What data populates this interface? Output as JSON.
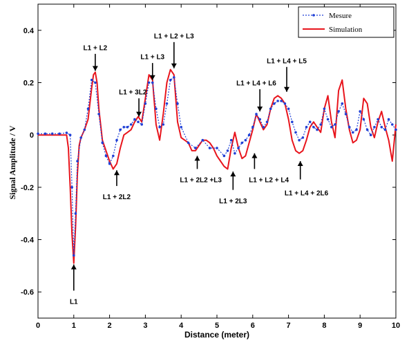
{
  "chart_data": {
    "type": "line",
    "xlabel": "Distance (meter)",
    "ylabel": "Signal Amplitude / V",
    "xlim": [
      0,
      10
    ],
    "ylim": [
      -0.7,
      0.5
    ],
    "xticks": [
      "0",
      "1",
      "2",
      "3",
      "4",
      "5",
      "6",
      "7",
      "8",
      "9",
      "10"
    ],
    "yticks": [
      "0.4",
      "0.2",
      "0",
      "-0.2",
      "-0.4",
      "-0.6"
    ],
    "grid": false,
    "legend_position": "top-right",
    "colors": {
      "mesure": "#1f3fd6",
      "simulation": "#e8141c"
    },
    "series": [
      {
        "name": "Mesure",
        "style": "dotted-line-with-markers",
        "x": [
          0,
          0.2,
          0.4,
          0.6,
          0.8,
          0.9,
          0.95,
          1.0,
          1.05,
          1.1,
          1.2,
          1.3,
          1.4,
          1.5,
          1.6,
          1.7,
          1.8,
          1.9,
          2.0,
          2.1,
          2.2,
          2.3,
          2.4,
          2.5,
          2.6,
          2.7,
          2.8,
          2.9,
          3.0,
          3.1,
          3.2,
          3.3,
          3.4,
          3.5,
          3.6,
          3.7,
          3.8,
          3.9,
          4.0,
          4.2,
          4.4,
          4.6,
          4.8,
          5.0,
          5.2,
          5.3,
          5.4,
          5.5,
          5.6,
          5.7,
          5.8,
          5.9,
          6.0,
          6.1,
          6.2,
          6.3,
          6.4,
          6.5,
          6.6,
          6.7,
          6.8,
          6.9,
          7.0,
          7.1,
          7.2,
          7.3,
          7.4,
          7.5,
          7.6,
          7.7,
          7.8,
          7.9,
          8.0,
          8.1,
          8.2,
          8.3,
          8.4,
          8.5,
          8.6,
          8.7,
          8.8,
          8.9,
          9.0,
          9.1,
          9.2,
          9.3,
          9.4,
          9.5,
          9.6,
          9.7,
          9.8,
          9.9,
          10.0
        ],
        "y": [
          0.005,
          0.005,
          0.005,
          0.005,
          0.008,
          0.0,
          -0.2,
          -0.46,
          -0.3,
          -0.1,
          -0.01,
          0.02,
          0.1,
          0.21,
          0.2,
          0.08,
          -0.03,
          -0.08,
          -0.11,
          -0.08,
          -0.02,
          0.02,
          0.03,
          0.03,
          0.04,
          0.06,
          0.05,
          0.04,
          0.12,
          0.2,
          0.2,
          0.1,
          0.03,
          0.04,
          0.12,
          0.21,
          0.22,
          0.12,
          0.03,
          -0.03,
          -0.05,
          -0.02,
          -0.05,
          -0.05,
          -0.08,
          -0.06,
          -0.02,
          -0.07,
          -0.05,
          -0.03,
          -0.02,
          0.0,
          0.03,
          0.08,
          0.06,
          0.03,
          0.05,
          0.1,
          0.12,
          0.13,
          0.13,
          0.12,
          0.1,
          0.05,
          0.01,
          -0.02,
          -0.01,
          0.03,
          0.05,
          0.03,
          0.02,
          0.04,
          0.1,
          0.06,
          0.03,
          0.04,
          0.09,
          0.12,
          0.08,
          0.03,
          0.01,
          0.02,
          0.09,
          0.06,
          0.02,
          0.0,
          0.03,
          0.06,
          0.03,
          0.02,
          0.06,
          0.04,
          0.02
        ]
      },
      {
        "name": "Simulation",
        "style": "solid-line",
        "x": [
          0,
          0.5,
          0.8,
          0.85,
          0.9,
          0.95,
          1.0,
          1.05,
          1.1,
          1.15,
          1.2,
          1.3,
          1.4,
          1.5,
          1.55,
          1.6,
          1.65,
          1.7,
          1.8,
          1.9,
          2.0,
          2.1,
          2.2,
          2.3,
          2.4,
          2.5,
          2.6,
          2.7,
          2.8,
          2.9,
          3.0,
          3.1,
          3.2,
          3.3,
          3.4,
          3.5,
          3.6,
          3.7,
          3.8,
          3.9,
          4.0,
          4.1,
          4.2,
          4.3,
          4.4,
          4.5,
          4.6,
          4.7,
          4.8,
          4.9,
          5.0,
          5.1,
          5.2,
          5.3,
          5.4,
          5.5,
          5.6,
          5.7,
          5.8,
          5.9,
          6.0,
          6.1,
          6.2,
          6.3,
          6.4,
          6.5,
          6.6,
          6.7,
          6.8,
          6.9,
          7.0,
          7.1,
          7.2,
          7.3,
          7.4,
          7.5,
          7.6,
          7.7,
          7.8,
          7.9,
          8.0,
          8.1,
          8.2,
          8.3,
          8.4,
          8.5,
          8.6,
          8.7,
          8.8,
          8.9,
          9.0,
          9.1,
          9.2,
          9.3,
          9.4,
          9.5,
          9.6,
          9.7,
          9.8,
          9.9,
          10.0
        ],
        "y": [
          0.0,
          0.0,
          0.0,
          -0.05,
          -0.2,
          -0.38,
          -0.49,
          -0.35,
          -0.15,
          -0.04,
          -0.01,
          0.02,
          0.06,
          0.18,
          0.23,
          0.24,
          0.2,
          0.1,
          -0.02,
          -0.06,
          -0.1,
          -0.13,
          -0.11,
          -0.05,
          0.0,
          0.01,
          0.02,
          0.05,
          0.07,
          0.05,
          0.14,
          0.23,
          0.21,
          0.04,
          -0.02,
          0.08,
          0.2,
          0.25,
          0.23,
          0.05,
          -0.01,
          -0.02,
          -0.03,
          -0.06,
          -0.06,
          -0.04,
          -0.02,
          -0.02,
          -0.03,
          -0.05,
          -0.08,
          -0.1,
          -0.12,
          -0.13,
          -0.05,
          0.01,
          -0.05,
          -0.09,
          -0.08,
          -0.03,
          0.02,
          0.08,
          0.05,
          0.02,
          0.04,
          0.1,
          0.14,
          0.15,
          0.14,
          0.12,
          0.06,
          -0.02,
          -0.06,
          -0.07,
          -0.06,
          -0.02,
          0.03,
          0.05,
          0.03,
          0.01,
          0.1,
          0.15,
          0.05,
          -0.01,
          0.17,
          0.21,
          0.1,
          0.02,
          -0.03,
          -0.02,
          0.02,
          0.14,
          0.12,
          0.03,
          -0.01,
          0.05,
          0.09,
          0.03,
          -0.02,
          -0.1,
          0.04
        ]
      }
    ],
    "annotations": [
      {
        "text": "L1",
        "label_x": 1.0,
        "label_y": -0.635,
        "arrow_from": [
          1.0,
          -0.595
        ],
        "arrow_to": [
          1.0,
          -0.495
        ],
        "align": "middle"
      },
      {
        "text": "L1 + L2",
        "label_x": 1.6,
        "label_y": 0.335,
        "arrow_from": [
          1.6,
          0.31
        ],
        "arrow_to": [
          1.6,
          0.245
        ],
        "align": "middle"
      },
      {
        "text": "L1 + 2L2",
        "label_x": 2.2,
        "label_y": -0.235,
        "arrow_from": [
          2.2,
          -0.195
        ],
        "arrow_to": [
          2.2,
          -0.135
        ],
        "align": "middle"
      },
      {
        "text": "L1 + 3L2",
        "label_x": 2.65,
        "label_y": 0.165,
        "arrow_from": [
          2.82,
          0.14
        ],
        "arrow_to": [
          2.82,
          0.07
        ],
        "align": "middle"
      },
      {
        "text": "L1 + L3",
        "label_x": 3.2,
        "label_y": 0.3,
        "arrow_from": [
          3.2,
          0.275
        ],
        "arrow_to": [
          3.2,
          0.21
        ],
        "align": "middle"
      },
      {
        "text": "L1 + L2 + L3",
        "label_x": 3.8,
        "label_y": 0.38,
        "arrow_from": [
          3.8,
          0.355
        ],
        "arrow_to": [
          3.8,
          0.255
        ],
        "align": "middle"
      },
      {
        "text": "L1 + 2L2 +L3",
        "label_x": 4.55,
        "label_y": -0.17,
        "arrow_from": [
          4.45,
          -0.13
        ],
        "arrow_to": [
          4.45,
          -0.08
        ],
        "align": "middle"
      },
      {
        "text": "L1 + 2L3",
        "label_x": 5.45,
        "label_y": -0.25,
        "arrow_from": [
          5.45,
          -0.21
        ],
        "arrow_to": [
          5.45,
          -0.14
        ],
        "align": "middle"
      },
      {
        "text": "L1 + L2 + L4",
        "label_x": 6.45,
        "label_y": -0.17,
        "arrow_from": [
          6.05,
          -0.13
        ],
        "arrow_to": [
          6.05,
          -0.07
        ],
        "align": "middle"
      },
      {
        "text": "L1 + L4 + L6",
        "label_x": 6.1,
        "label_y": 0.2,
        "arrow_from": [
          6.2,
          0.175
        ],
        "arrow_to": [
          6.2,
          0.09
        ],
        "align": "middle"
      },
      {
        "text": "L1 + L4 + L5",
        "label_x": 6.95,
        "label_y": 0.285,
        "arrow_from": [
          6.95,
          0.26
        ],
        "arrow_to": [
          6.95,
          0.165
        ],
        "align": "middle"
      },
      {
        "text": "L1 + L4 + 2L6",
        "label_x": 7.5,
        "label_y": -0.22,
        "arrow_from": [
          7.33,
          -0.17
        ],
        "arrow_to": [
          7.33,
          -0.1
        ],
        "align": "middle"
      }
    ]
  }
}
